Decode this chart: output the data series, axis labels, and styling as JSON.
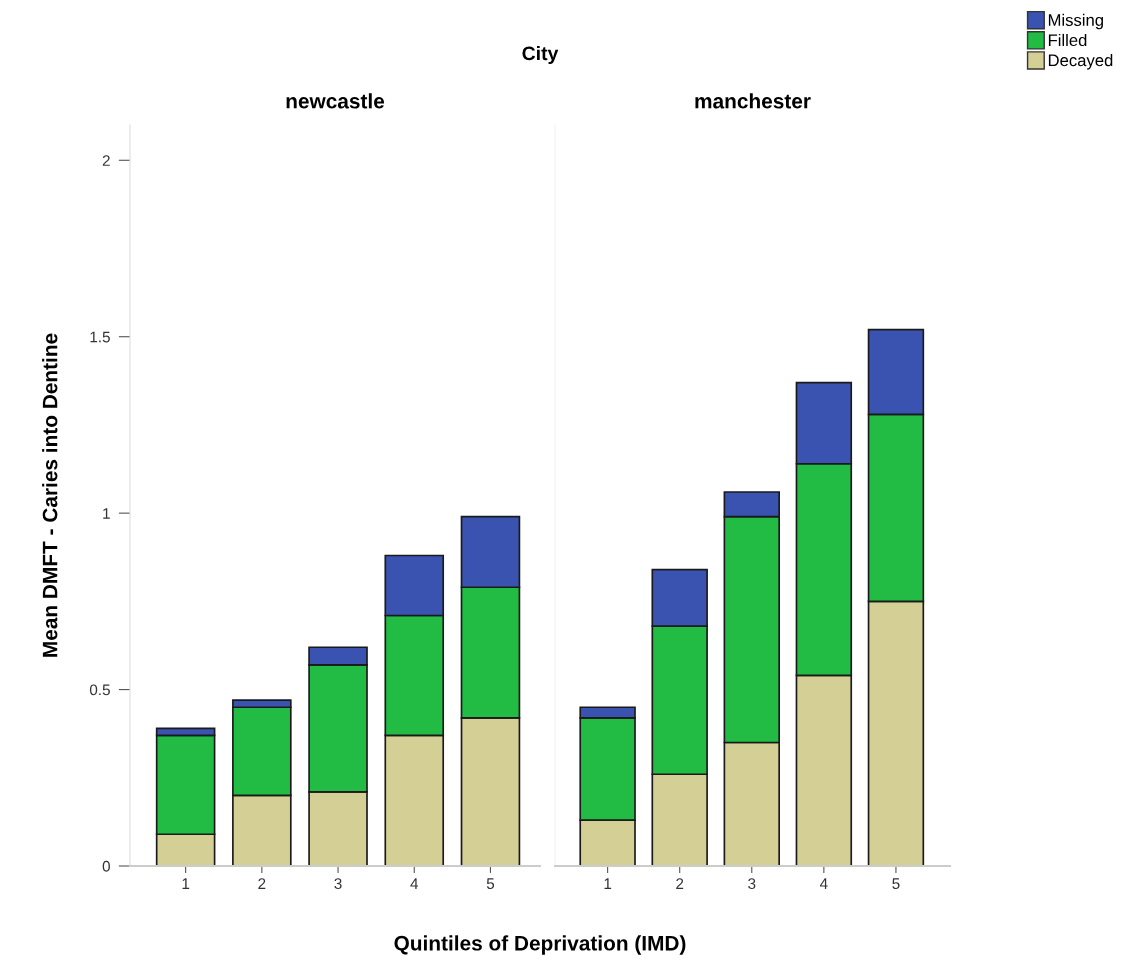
{
  "chart_data": [
    {
      "type": "bar",
      "title": "newcastle",
      "annotations": [
        "City"
      ],
      "xlabel": "Quintiles of Deprivation (IMD)",
      "ylabel": "Mean DMFT - Caries into Dentine",
      "categories": [
        "1",
        "2",
        "3",
        "4",
        "5"
      ],
      "stacked": true,
      "ylim": [
        0,
        2.1
      ],
      "yticks": [
        0,
        0.5,
        1,
        1.5,
        2
      ],
      "grid": false,
      "legend": "top right",
      "series": [
        {
          "name": "Decayed",
          "color": "#d4cf95",
          "values": [
            0.09,
            0.2,
            0.21,
            0.37,
            0.42
          ]
        },
        {
          "name": "Filled",
          "color": "#22bb44",
          "values": [
            0.28,
            0.25,
            0.36,
            0.34,
            0.37
          ]
        },
        {
          "name": "Missing",
          "color": "#3a53b0",
          "values": [
            0.02,
            0.02,
            0.05,
            0.17,
            0.2
          ]
        }
      ]
    },
    {
      "type": "bar",
      "title": "manchester",
      "categories": [
        "1",
        "2",
        "3",
        "4",
        "5"
      ],
      "stacked": true,
      "ylim": [
        0,
        2.1
      ],
      "yticks": [
        0,
        0.5,
        1,
        1.5,
        2
      ],
      "tick_labels": "x",
      "grid": false,
      "series": [
        {
          "color": "#d4cf95",
          "values": [
            0.13,
            0.26,
            0.35,
            0.54,
            0.75
          ]
        },
        {
          "color": "#22bb44",
          "values": [
            0.29,
            0.42,
            0.64,
            0.6,
            0.53
          ]
        },
        {
          "color": "#3a53b0",
          "values": [
            0.03,
            0.16,
            0.07,
            0.23,
            0.24
          ]
        }
      ]
    }
  ]
}
